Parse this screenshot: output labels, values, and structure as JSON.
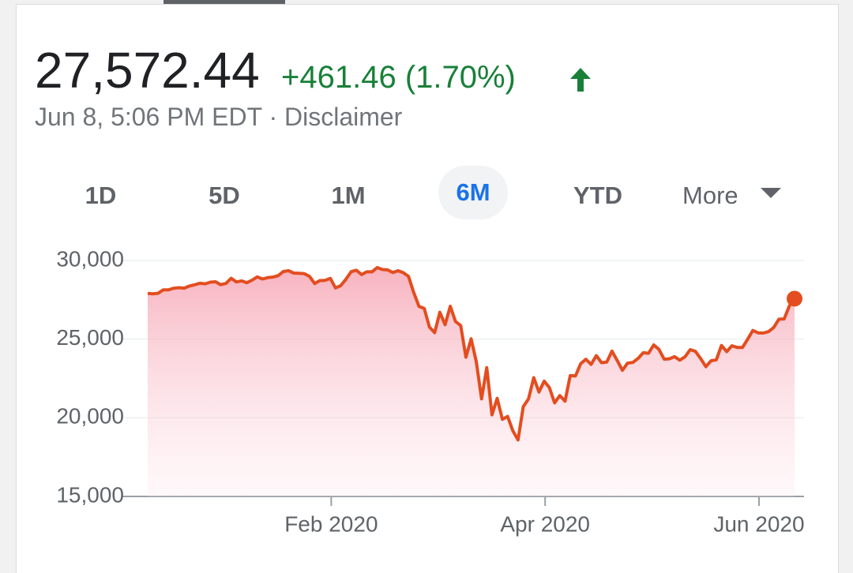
{
  "header": {
    "price": "27,572.44",
    "change": "+461.46 (1.70%)",
    "timestamp": "Jun 8, 5:06 PM EDT",
    "separator": "·",
    "disclaimer": "Disclaimer"
  },
  "tabs": [
    "1D",
    "5D",
    "1M",
    "6M",
    "YTD",
    "More"
  ],
  "selected_tab": "6M",
  "chart_data": {
    "type": "line",
    "color": "#e34d1f",
    "area": true,
    "grid": true,
    "categories": [
      null,
      null,
      null,
      null,
      null,
      null,
      null,
      null,
      null,
      null,
      null,
      null,
      null,
      null,
      null,
      null,
      null,
      null,
      null,
      null,
      null,
      null,
      null,
      null,
      null,
      null,
      null,
      null,
      null,
      null,
      null,
      null,
      null,
      null,
      null,
      null,
      null,
      "Feb 2020",
      null,
      null,
      null,
      null,
      null,
      null,
      null,
      null,
      null,
      null,
      null,
      null,
      null,
      null,
      null,
      null,
      null,
      null,
      null,
      null,
      null,
      null,
      null,
      null,
      null,
      null,
      null,
      null,
      null,
      null,
      null,
      null,
      null,
      null,
      null,
      null,
      null,
      null,
      null,
      null,
      "Apr 2020",
      null,
      null,
      null,
      null,
      null,
      null,
      null,
      null,
      null,
      null,
      null,
      null,
      null,
      null,
      null,
      null,
      null,
      null,
      null,
      null,
      null,
      null,
      null,
      null,
      null,
      null,
      null,
      null,
      null,
      null,
      null,
      null,
      null,
      null,
      null,
      null,
      null,
      null,
      null,
      null,
      "Jun 2020",
      null,
      null,
      null,
      null,
      null
    ],
    "values": [
      27909,
      27881,
      27911,
      28132,
      28135,
      28235,
      28267,
      28239,
      28376,
      28455,
      28551,
      28515,
      28621,
      28645,
      28462,
      28538,
      28868,
      28634,
      28703,
      28583,
      28745,
      28956,
      28823,
      28907,
      28940,
      29030,
      29297,
      29348,
      29196,
      29186,
      29160,
      28990,
      28535,
      28723,
      28734,
      28860,
      28256,
      28400,
      28807,
      29290,
      29380,
      29103,
      29276,
      29276,
      29551,
      29423,
      29398,
      29232,
      29348,
      29220,
      28992,
      27961,
      27081,
      26957,
      25766,
      25409,
      26703,
      25917,
      27091,
      26121,
      25865,
      23851,
      25018,
      23553,
      21200,
      23185,
      20189,
      21237,
      19899,
      20087,
      19174,
      18592,
      20705,
      21200,
      22552,
      21637,
      22327,
      21917,
      20944,
      21413,
      21053,
      22680,
      22654,
      23434,
      23720,
      23391,
      23950,
      23504,
      23538,
      24242,
      23650,
      23019,
      23475,
      23516,
      23775,
      24134,
      24101,
      24634,
      24346,
      23724,
      23750,
      23883,
      23665,
      23876,
      24331,
      24222,
      23765,
      23248,
      23626,
      23685,
      24597,
      24207,
      24576,
      24474,
      24465,
      24995,
      25548,
      25401,
      25383,
      25475,
      25742,
      26270,
      26282,
      27111,
      27572.44
    ],
    "ylim": [
      15000,
      30000
    ],
    "yticks": [
      {
        "value": 15000,
        "label": "15,000"
      },
      {
        "value": 20000,
        "label": "20,000"
      },
      {
        "value": 25000,
        "label": "25,000"
      },
      {
        "value": 30000,
        "label": "30,000"
      }
    ]
  }
}
